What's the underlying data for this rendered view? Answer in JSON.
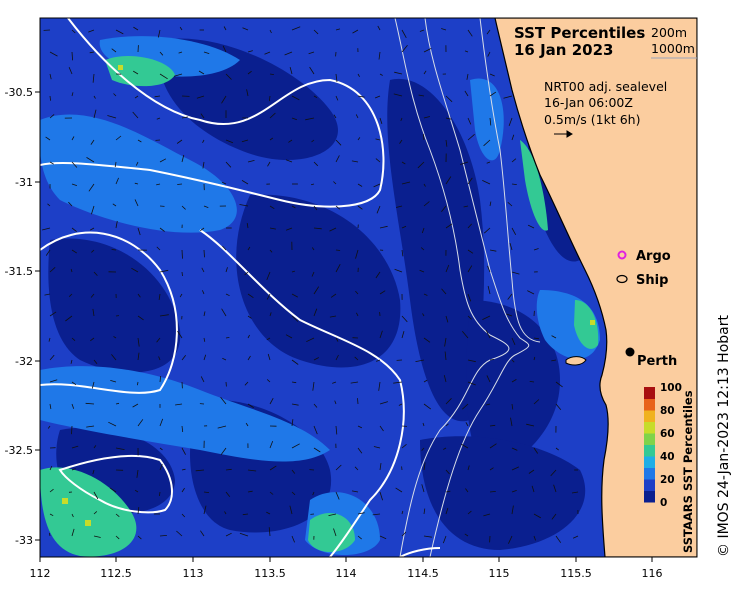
{
  "title": {
    "line1": "SST Percentiles",
    "line2": "16 Jan 2023"
  },
  "isobath_legend": {
    "a": "200m",
    "b": "1000m"
  },
  "current_info": {
    "line1": "NRT00 adj. sealevel",
    "line2": "16-Jan 06:00Z",
    "line3": "0.5m/s (1kt 6h)"
  },
  "markers": {
    "argo": "Argo",
    "ship": "Ship",
    "city": "Perth"
  },
  "axes": {
    "x_ticks": [
      "112",
      "112.5",
      "113",
      "113.5",
      "114",
      "114.5",
      "115",
      "115.5",
      "116"
    ],
    "y_ticks": [
      "-30.5",
      "-31",
      "-31.5",
      "-32",
      "-32.5",
      "-33"
    ]
  },
  "colorbar": {
    "label": "SSTAARS SST Percentiles",
    "ticks": [
      "100",
      "80",
      "60",
      "40",
      "20",
      "0"
    ],
    "colors": [
      "#0a1f8f",
      "#1d3fc7",
      "#1f78e8",
      "#1faee6",
      "#33c994",
      "#7fd34a",
      "#c7dc2a",
      "#f0b21f",
      "#e8621a",
      "#a80f10"
    ]
  },
  "credit": "© IMOS 24-Jan-2023 12:13 Hobart",
  "colors": {
    "land": "#fbcd9f",
    "ocean_deep": "#0a1f8f",
    "ocean_mid": "#1d3fc7",
    "ocean_warm": "#1f78e8"
  }
}
